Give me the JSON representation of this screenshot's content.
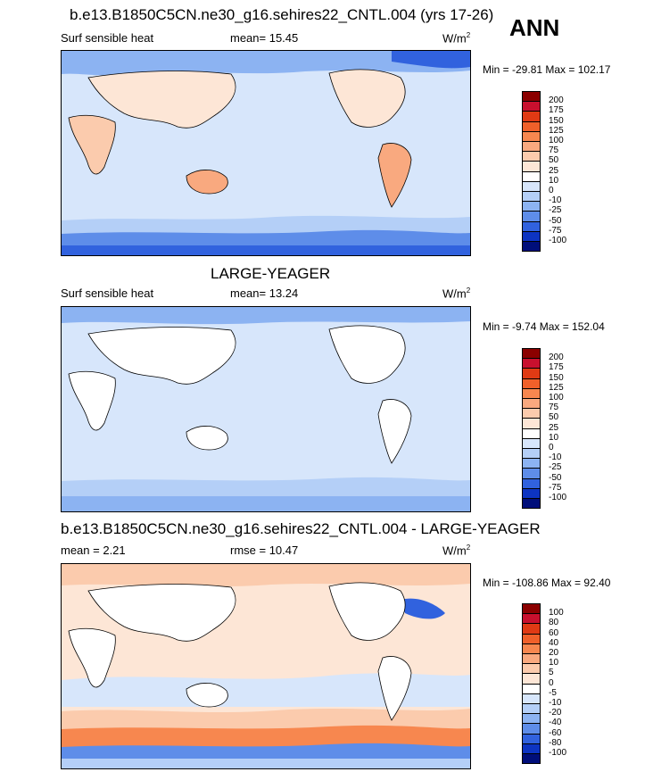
{
  "panel1": {
    "title": "b.e13.B1850C5CN.ne30_g16.sehires22_CNTL.004 (yrs 17-26)",
    "left": "Surf sensible heat",
    "center": "mean=  15.45",
    "unit": "W/m",
    "unit_exp": "2",
    "minmax": "Min = -29.81 Max = 102.17"
  },
  "season": "ANN",
  "panel2": {
    "title": "LARGE-YEAGER",
    "left": "Surf sensible heat",
    "center": "mean=  13.24",
    "unit": "W/m",
    "unit_exp": "2",
    "minmax": "Min =  -9.74 Max = 152.04"
  },
  "panel3": {
    "title": "b.e13.B1850C5CN.ne30_g16.sehires22_CNTL.004 - LARGE-YEAGER",
    "left": "mean =   2.21",
    "center": "rmse =  10.47",
    "unit": "W/m",
    "unit_exp": "2",
    "minmax": "Min = -108.86 Max =  92.40"
  },
  "colorbar_main": {
    "labels": [
      "200",
      "175",
      "150",
      "125",
      "100",
      "75",
      "50",
      "25",
      "10",
      "0",
      "-10",
      "-25",
      "-50",
      "-75",
      "-100"
    ],
    "colors": [
      "#8b0000",
      "#c8102e",
      "#e03a14",
      "#f0602a",
      "#f7874f",
      "#f9a97f",
      "#fbcbad",
      "#fde6d6",
      "#ffffff",
      "#d7e6fb",
      "#b4cff7",
      "#8cb3f2",
      "#5e8de9",
      "#3162de",
      "#0d34c2",
      "#000e7a"
    ]
  },
  "colorbar_diff": {
    "labels": [
      "100",
      "80",
      "60",
      "40",
      "20",
      "10",
      "5",
      "0",
      "-5",
      "-10",
      "-20",
      "-40",
      "-60",
      "-80",
      "-100"
    ],
    "colors": [
      "#8b0000",
      "#c8102e",
      "#e03a14",
      "#f0602a",
      "#f7874f",
      "#f9a97f",
      "#fbcbad",
      "#fde6d6",
      "#ffffff",
      "#d7e6fb",
      "#b4cff7",
      "#8cb3f2",
      "#5e8de9",
      "#3162de",
      "#0d34c2",
      "#000e7a"
    ]
  }
}
